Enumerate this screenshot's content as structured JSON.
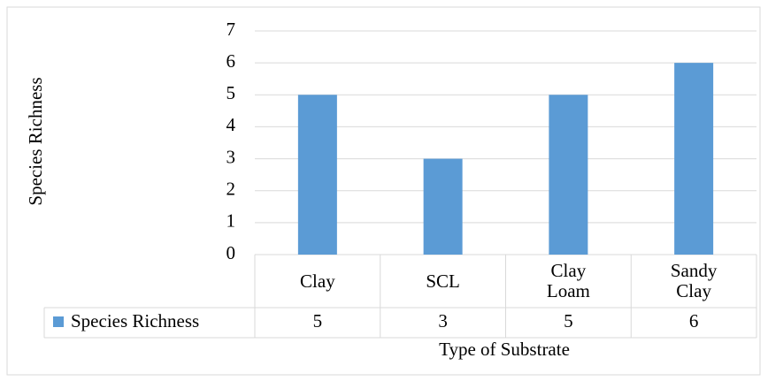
{
  "chart_data": {
    "type": "bar",
    "y_label": "Species Richness",
    "x_label": "Type of Substrate",
    "categories": [
      "Clay",
      "SCL",
      "Clay Loam",
      "Sandy Clay"
    ],
    "series": [
      {
        "name": "Species Richness",
        "color": "#5b9bd5",
        "values": [
          5,
          3,
          5,
          6
        ]
      }
    ],
    "ylim": [
      0,
      7
    ],
    "yticks": [
      0,
      1,
      2,
      3,
      4,
      5,
      6,
      7
    ],
    "grid": true
  }
}
